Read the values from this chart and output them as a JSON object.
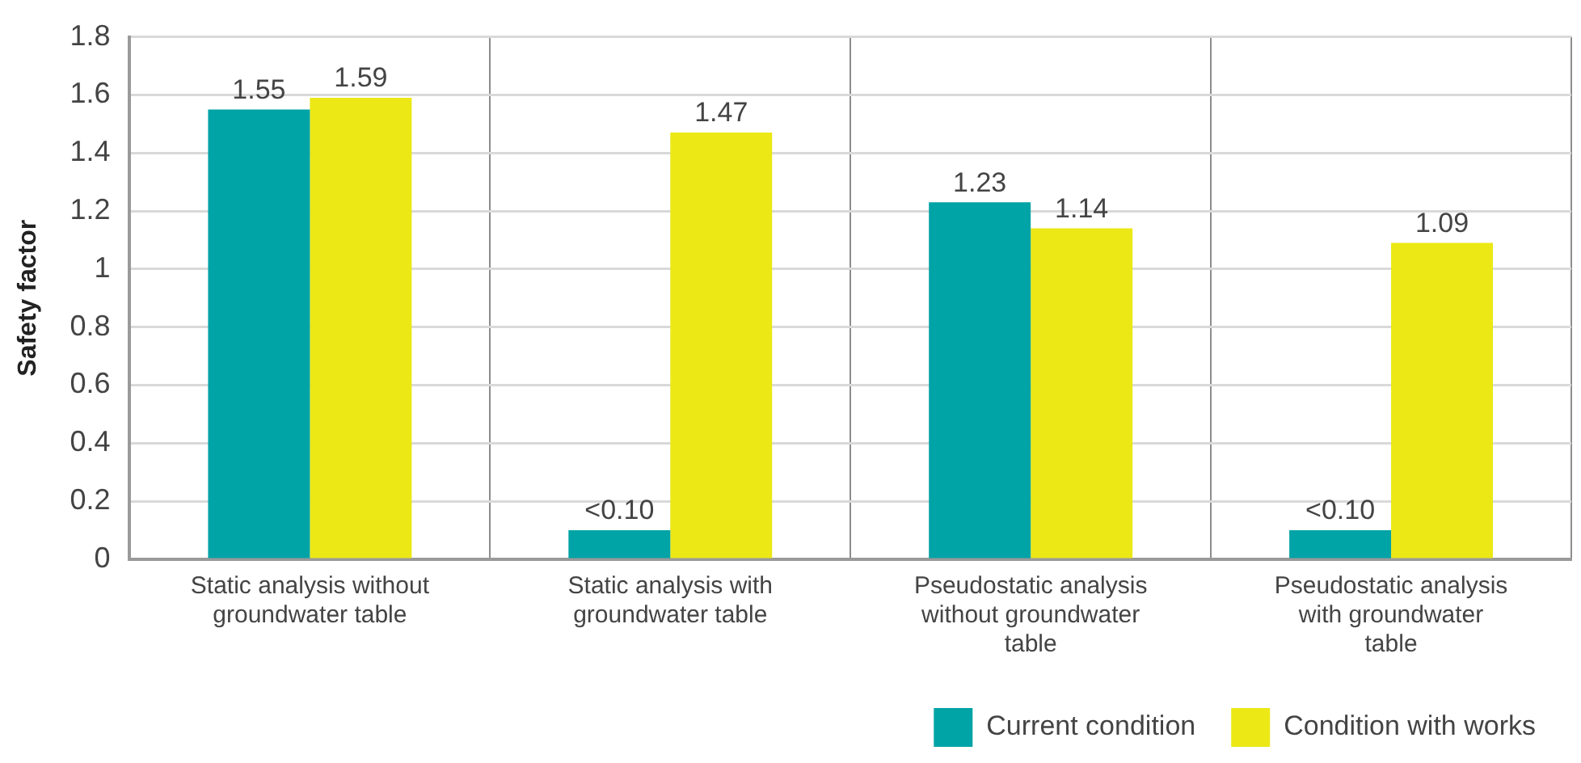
{
  "chart_data": {
    "type": "bar",
    "ylabel": "Safety factor",
    "categories": [
      "Static analysis without groundwater table",
      "Static analysis with groundwater table",
      "Pseudostatic analysis without groundwater table",
      "Pseudostatic analysis with groundwater table"
    ],
    "series": [
      {
        "name": "Current condition",
        "color": "#00a3a6",
        "values": [
          1.55,
          0.1,
          1.23,
          0.1
        ],
        "value_labels": [
          "1.55",
          "<0.10",
          "1.23",
          "<0.10"
        ]
      },
      {
        "name": "Condition with works",
        "color": "#ebe816",
        "values": [
          1.59,
          1.47,
          1.14,
          1.09
        ],
        "value_labels": [
          "1.59",
          "1.47",
          "1.14",
          "1.09"
        ]
      }
    ],
    "ylim": [
      0,
      1.8
    ],
    "yticks": [
      0,
      0.2,
      0.4,
      0.6,
      0.8,
      1,
      1.2,
      1.4,
      1.6,
      1.8
    ],
    "grid": true,
    "legend": "bottom right"
  }
}
